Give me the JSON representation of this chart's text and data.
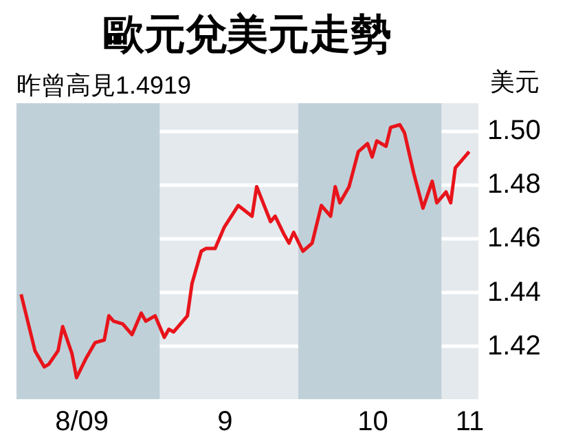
{
  "chart_data": {
    "type": "line",
    "title": "歐元兌美元走勢",
    "subtitle": "昨曾高見1.4919",
    "ylabel": "美元",
    "x": [
      "2009-08-02",
      "2009-08-03",
      "2009-08-04",
      "2009-08-05",
      "2009-08-07",
      "2009-08-08",
      "2009-08-10",
      "2009-08-11",
      "2009-08-13",
      "2009-08-14",
      "2009-08-16",
      "2009-08-18",
      "2009-08-20",
      "2009-08-21",
      "2009-08-22",
      "2009-08-24",
      "2009-08-26",
      "2009-08-28",
      "2009-08-29",
      "2009-08-31",
      "2009-09-02",
      "2009-09-03",
      "2009-09-04",
      "2009-09-07",
      "2009-09-08",
      "2009-09-10",
      "2009-09-11",
      "2009-09-13",
      "2009-09-15",
      "2009-09-18",
      "2009-09-21",
      "2009-09-22",
      "2009-09-25",
      "2009-09-26",
      "2009-09-28",
      "2009-09-29",
      "2009-09-30",
      "2009-10-02",
      "2009-10-04",
      "2009-10-06",
      "2009-10-08",
      "2009-10-09",
      "2009-10-10",
      "2009-10-12",
      "2009-10-14",
      "2009-10-16",
      "2009-10-17",
      "2009-10-18",
      "2009-10-20",
      "2009-10-21",
      "2009-10-23",
      "2009-10-24",
      "2009-10-26",
      "2009-10-28",
      "2009-10-30",
      "2009-10-31",
      "2009-11-02",
      "2009-11-03",
      "2009-11-04",
      "2009-11-07"
    ],
    "series": [
      {
        "color": "#e8141b",
        "values": [
          1.439,
          1.432,
          1.425,
          1.418,
          1.412,
          1.413,
          1.418,
          1.427,
          1.417,
          1.408,
          1.415,
          1.421,
          1.422,
          1.431,
          1.429,
          1.428,
          1.424,
          1.432,
          1.429,
          1.431,
          1.423,
          1.426,
          1.425,
          1.431,
          1.443,
          1.455,
          1.456,
          1.456,
          1.464,
          1.472,
          1.468,
          1.479,
          1.466,
          1.468,
          1.461,
          1.458,
          1.462,
          1.455,
          1.458,
          1.472,
          1.468,
          1.479,
          1.473,
          1.479,
          1.492,
          1.495,
          1.49,
          1.496,
          1.494,
          1.501,
          1.502,
          1.499,
          1.484,
          1.471,
          1.481,
          1.473,
          1.477,
          1.473,
          1.486,
          1.492
        ]
      }
    ],
    "xlim": [
      "2009-08-01",
      "2009-11-09"
    ],
    "xticks": [
      {
        "value": "2009-08-15",
        "label": "8/09"
      },
      {
        "value": "2009-09-15",
        "label": "9"
      },
      {
        "value": "2009-10-17",
        "label": "10"
      },
      {
        "value": "2009-11-07",
        "label": "11"
      }
    ],
    "ylim": [
      1.4,
      1.51
    ],
    "yticks": [
      {
        "value": 1.42,
        "label": "1.42"
      },
      {
        "value": 1.44,
        "label": "1.44"
      },
      {
        "value": 1.46,
        "label": "1.46"
      },
      {
        "value": 1.48,
        "label": "1.48"
      },
      {
        "value": 1.5,
        "label": "1.50"
      }
    ],
    "bands": [
      {
        "axis": "x",
        "from": "2009-08-01",
        "to": "2009-09-01",
        "color": "#c0d0d8"
      },
      {
        "axis": "x",
        "from": "2009-10-01",
        "to": "2009-11-01",
        "color": "#c0d0d8"
      }
    ],
    "grid": "y",
    "marker": "none",
    "line_style": "solid"
  }
}
